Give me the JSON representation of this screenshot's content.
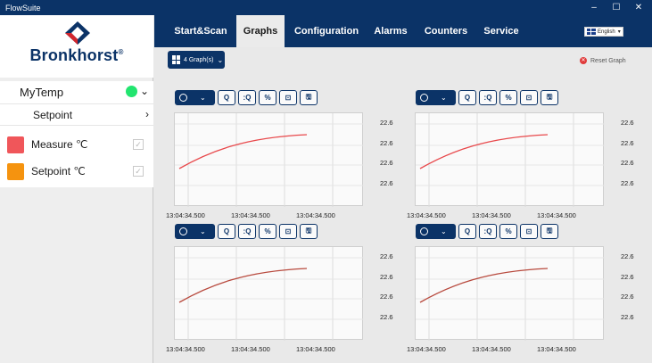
{
  "window": {
    "title": "FlowSuite"
  },
  "brand": {
    "name": "Bronkhorst",
    "trademark": "®"
  },
  "sidebar": {
    "device": {
      "name": "MyTemp",
      "status_color": "#22e56f"
    },
    "subitem": {
      "label": "Setpoint"
    },
    "series": [
      {
        "label": "Measure  ℃",
        "color": "#f0565a"
      },
      {
        "label": "Setpoint  ℃",
        "color": "#f5930f"
      }
    ]
  },
  "nav": {
    "tabs": [
      "Start&Scan",
      "Graphs",
      "Configuration",
      "Alarms",
      "Counters",
      "Service"
    ],
    "active": "Graphs",
    "language": "English"
  },
  "toolbar": {
    "graphs_label": "4 Graph(s)",
    "reset_label": "Reset Graph"
  },
  "panels": [
    {
      "y_ticks": [
        "22.6",
        "22.6",
        "22.6",
        "22.6"
      ],
      "x_ticks": [
        "13:04:34.500",
        "13:04:34.500",
        "13:04:34.500"
      ],
      "line_color": "#e8484b"
    },
    {
      "y_ticks": [
        "22.6",
        "22.6",
        "22.6",
        "22.6"
      ],
      "x_ticks": [
        "13:04:34.500",
        "13:04:34.500",
        "13:04:34.500"
      ],
      "line_color": "#e8484b"
    },
    {
      "y_ticks": [
        "22.6",
        "22.6",
        "22.6",
        "22.6"
      ],
      "x_ticks": [
        "13:04:34.500",
        "13:04:34.500",
        "13:04:34.500"
      ],
      "line_color": "#b84a3e"
    },
    {
      "y_ticks": [
        "22.6",
        "22.6",
        "22.6",
        "22.6"
      ],
      "x_ticks": [
        "13:04:34.500",
        "13:04:34.500",
        "13:04:34.500"
      ],
      "line_color": "#b84a3e"
    }
  ],
  "panel_buttons": {
    "zoom_in": "Q",
    "zoom_fit": ":Q",
    "percent": "%",
    "crop": "⊡",
    "save": "🖫"
  }
}
